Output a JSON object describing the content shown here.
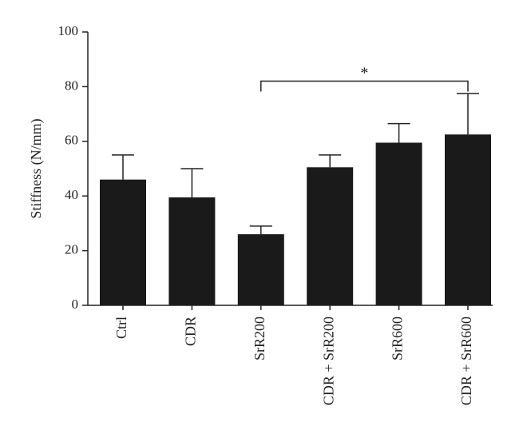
{
  "chart_data": {
    "type": "bar",
    "title": "",
    "xlabel": "",
    "ylabel": "Stiffness (N/mm)",
    "ylim": [
      0,
      100
    ],
    "yticks": [
      "0",
      "20",
      "40",
      "60",
      "80",
      "100"
    ],
    "grid": false,
    "categories": [
      "Ctrl",
      "CDR",
      "SrR200",
      "CDR + SrR200",
      "SrR600",
      "CDR + SrR600"
    ],
    "values": [
      46,
      39.5,
      26,
      50.5,
      59.5,
      62.5
    ],
    "error_upper": [
      55,
      50,
      29,
      55,
      66.5,
      77.5
    ],
    "bar_color": "#1a1a1a",
    "significance": {
      "from_category": "SrR200",
      "to_category": "CDR + SrR600",
      "level": 82,
      "label": "*"
    }
  }
}
